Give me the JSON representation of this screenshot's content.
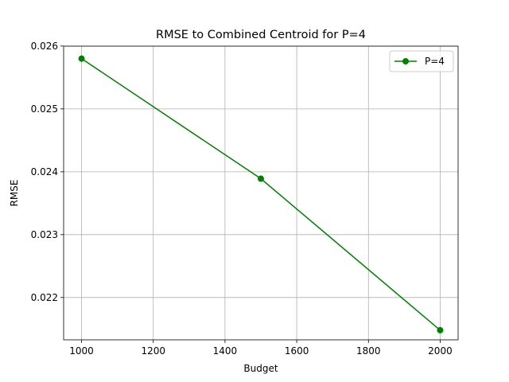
{
  "chart_data": {
    "type": "line",
    "title": "RMSE to Combined Centroid for P=4",
    "xlabel": "Budget",
    "ylabel": "RMSE",
    "xlim": [
      950,
      2050
    ],
    "ylim": [
      0.021327,
      0.025998
    ],
    "xticks": [
      1000,
      1200,
      1400,
      1600,
      1800,
      2000
    ],
    "yticks": [
      0.022,
      0.023,
      0.024,
      0.025,
      0.026
    ],
    "ytick_labels": [
      "0.022",
      "0.023",
      "0.024",
      "0.025",
      "0.026"
    ],
    "grid": true,
    "legend_position": "top-right",
    "series": [
      {
        "name": "P=4",
        "color": "#008000",
        "marker": "circle",
        "x": [
          1000,
          1500,
          2000
        ],
        "y": [
          0.0258,
          0.02389,
          0.02148
        ]
      }
    ]
  }
}
